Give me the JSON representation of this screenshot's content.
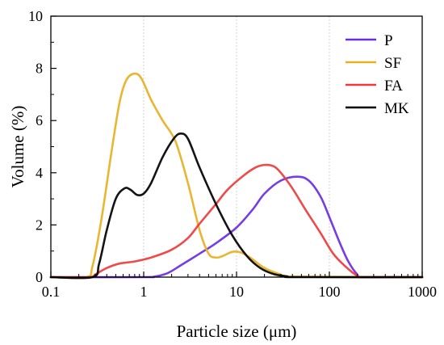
{
  "chart_data": {
    "type": "line",
    "xlabel": "Particle size (μm)",
    "ylabel": "Volume (%)",
    "x_scale": "log",
    "xlim": [
      0.1,
      1000
    ],
    "ylim": [
      0,
      10
    ],
    "x_ticks": [
      0.1,
      1,
      10,
      100,
      1000
    ],
    "x_tick_labels": [
      "0.1",
      "1",
      "10",
      "100",
      "1000"
    ],
    "y_ticks": [
      0,
      2,
      4,
      6,
      8,
      10
    ],
    "y_tick_labels": [
      "0",
      "2",
      "4",
      "6",
      "8",
      "10"
    ],
    "grid": "vertical dashed at major x ticks",
    "legend_position": "top-right",
    "series": [
      {
        "name": "P",
        "color": "#6a2ee0",
        "points": [
          [
            0.1,
            0
          ],
          [
            1.0,
            0
          ],
          [
            1.3,
            0.02
          ],
          [
            1.8,
            0.15
          ],
          [
            2.5,
            0.45
          ],
          [
            4,
            0.9
          ],
          [
            6,
            1.3
          ],
          [
            10,
            1.9
          ],
          [
            15,
            2.6
          ],
          [
            20,
            3.2
          ],
          [
            30,
            3.7
          ],
          [
            45,
            3.85
          ],
          [
            60,
            3.7
          ],
          [
            80,
            3.1
          ],
          [
            100,
            2.3
          ],
          [
            130,
            1.3
          ],
          [
            160,
            0.6
          ],
          [
            200,
            0.1
          ],
          [
            230,
            0
          ],
          [
            1000,
            0
          ]
        ]
      },
      {
        "name": "SF",
        "color": "#e8b020",
        "points": [
          [
            0.1,
            0
          ],
          [
            0.24,
            0
          ],
          [
            0.28,
            0.4
          ],
          [
            0.35,
            2.2
          ],
          [
            0.45,
            4.8
          ],
          [
            0.55,
            6.7
          ],
          [
            0.65,
            7.55
          ],
          [
            0.8,
            7.8
          ],
          [
            0.95,
            7.6
          ],
          [
            1.2,
            6.8
          ],
          [
            1.6,
            6.0
          ],
          [
            2.2,
            5.2
          ],
          [
            3,
            3.6
          ],
          [
            4,
            1.8
          ],
          [
            5,
            0.9
          ],
          [
            6,
            0.75
          ],
          [
            7,
            0.8
          ],
          [
            9,
            0.97
          ],
          [
            11,
            0.95
          ],
          [
            14,
            0.75
          ],
          [
            20,
            0.35
          ],
          [
            30,
            0.1
          ],
          [
            40,
            0.02
          ],
          [
            1000,
            0
          ]
        ]
      },
      {
        "name": "FA",
        "color": "#ee3b3b",
        "points": [
          [
            0.1,
            0
          ],
          [
            0.26,
            0
          ],
          [
            0.3,
            0.1
          ],
          [
            0.4,
            0.35
          ],
          [
            0.55,
            0.52
          ],
          [
            0.8,
            0.6
          ],
          [
            1.2,
            0.75
          ],
          [
            2,
            1.05
          ],
          [
            3,
            1.5
          ],
          [
            4,
            2.05
          ],
          [
            6,
            2.8
          ],
          [
            8,
            3.35
          ],
          [
            12,
            3.9
          ],
          [
            16,
            4.2
          ],
          [
            20,
            4.3
          ],
          [
            25,
            4.25
          ],
          [
            30,
            4.0
          ],
          [
            40,
            3.4
          ],
          [
            55,
            2.6
          ],
          [
            80,
            1.7
          ],
          [
            110,
            0.9
          ],
          [
            150,
            0.4
          ],
          [
            200,
            0.05
          ],
          [
            240,
            0
          ],
          [
            1000,
            0
          ]
        ]
      },
      {
        "name": "MK",
        "color": "#000000",
        "points": [
          [
            0.1,
            0
          ],
          [
            0.28,
            0
          ],
          [
            0.33,
            0.5
          ],
          [
            0.4,
            1.8
          ],
          [
            0.5,
            3.0
          ],
          [
            0.62,
            3.4
          ],
          [
            0.72,
            3.35
          ],
          [
            0.85,
            3.15
          ],
          [
            1.0,
            3.2
          ],
          [
            1.2,
            3.6
          ],
          [
            1.6,
            4.6
          ],
          [
            2.1,
            5.3
          ],
          [
            2.5,
            5.5
          ],
          [
            3,
            5.3
          ],
          [
            4,
            4.2
          ],
          [
            6,
            2.8
          ],
          [
            9,
            1.6
          ],
          [
            13,
            0.8
          ],
          [
            18,
            0.35
          ],
          [
            25,
            0.12
          ],
          [
            35,
            0.03
          ],
          [
            45,
            0
          ],
          [
            1000,
            0
          ]
        ]
      }
    ]
  }
}
